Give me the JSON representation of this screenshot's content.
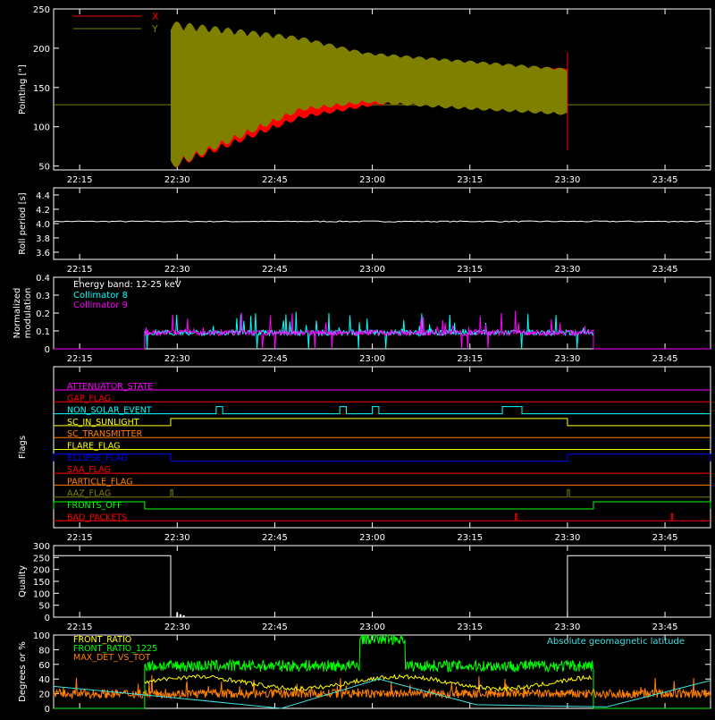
{
  "colors": {
    "background": "#000000",
    "frame": "#ffffff",
    "x_series": "#ff0000",
    "y_series": "#808000",
    "collimator8": "#00ffff",
    "collimator9": "#ff00ff",
    "front_ratio": "#ffff00",
    "front_ratio_1225": "#00ff00",
    "max_det": "#ff8000",
    "geomag": "#40e0e0"
  },
  "time_ticks": [
    "22:15",
    "22:30",
    "22:45",
    "23:00",
    "23:15",
    "23:30",
    "23:45"
  ],
  "chart_data": [
    {
      "type": "line",
      "panel": "pointing",
      "ylabel": "Pointing [\"]",
      "ylim": [
        45,
        250
      ],
      "yticks": [
        "50",
        "100",
        "150",
        "200",
        "250"
      ],
      "legend": [
        {
          "name": "X",
          "color": "#ff0000"
        },
        {
          "name": "Y",
          "color": "#808000"
        }
      ],
      "series": [
        {
          "name": "X",
          "envelope": {
            "t_minutes": [
              0,
              20,
              30,
              45,
              60,
              75,
              76
            ],
            "upper": [
              230,
              200,
              185,
              180,
              175,
              175,
              175
            ],
            "lower": [
              45,
              110,
              125,
              140,
              145,
              150,
              150
            ]
          }
        },
        {
          "name": "Y",
          "envelope": {
            "t_minutes": [
              0,
              20,
              30,
              45,
              60,
              75,
              76
            ],
            "upper": [
              235,
              215,
              195,
              185,
              175,
              165,
              165
            ],
            "lower": [
              45,
              120,
              130,
              122,
              115,
              105,
              105
            ]
          }
        }
      ],
      "baseline": 128,
      "active_range": [
        "22:29",
        "23:30"
      ]
    },
    {
      "type": "line",
      "panel": "roll_period",
      "ylabel": "Roll period [s]",
      "ylim": [
        3.5,
        4.5
      ],
      "yticks": [
        "3.6",
        "3.8",
        "4.0",
        "4.2",
        "4.4"
      ],
      "value": 4.03
    },
    {
      "type": "line",
      "panel": "modulation",
      "ylabel": "Normalized modulation",
      "ylim": [
        0,
        0.4
      ],
      "yticks": [
        "0",
        "0.1",
        "0.2",
        "0.3",
        "0.4"
      ],
      "annotation": "Energy band: 12-25 keV",
      "series": [
        {
          "name": "Collimator 8",
          "base": 0.09,
          "range": [
            "22:25",
            "23:34"
          ]
        },
        {
          "name": "Collimator 9",
          "base": 0.09,
          "range": [
            "22:25",
            "23:34"
          ]
        }
      ]
    },
    {
      "type": "line",
      "panel": "flags",
      "ylabel": "Flags",
      "flags": [
        {
          "name": "ATTENUATOR_STATE",
          "color": "#ff00ff",
          "on": []
        },
        {
          "name": "GAP_FLAG",
          "color": "#ff0000",
          "on": []
        },
        {
          "name": "NON_SOLAR_EVENT",
          "color": "#00ffff",
          "on": [
            [
              "22:36",
              "22:37"
            ],
            [
              "22:55",
              "22:56"
            ],
            [
              "23:00",
              "23:01"
            ],
            [
              "23:20",
              "23:23"
            ]
          ]
        },
        {
          "name": "SC_IN_SUNLIGHT",
          "color": "#ffff00",
          "on": [
            [
              "22:29",
              "23:30"
            ]
          ]
        },
        {
          "name": "SC_TRANSMITTER",
          "color": "#ff8000",
          "on": []
        },
        {
          "name": "FLARE_FLAG",
          "color": "#ffff00",
          "on": []
        },
        {
          "name": "ECLIPSE_FLAG",
          "color": "#0000ff",
          "on": [
            [
              "22:11",
              "22:29"
            ],
            [
              "23:30",
              "23:52"
            ]
          ]
        },
        {
          "name": "SAA_FLAG",
          "color": "#ff0000",
          "on": []
        },
        {
          "name": "PARTICLE_FLAG",
          "color": "#ff8000",
          "on": []
        },
        {
          "name": "AAZ_FLAG",
          "color": "#808000",
          "on": [
            [
              "22:29",
              "22:29.3"
            ],
            [
              "23:30",
              "23:30.3"
            ]
          ]
        },
        {
          "name": "FRONTS_OFF",
          "color": "#00ff00",
          "on": [
            [
              "22:11",
              "22:25"
            ],
            [
              "23:34",
              "23:52"
            ]
          ]
        },
        {
          "name": "BAD_PACKETS",
          "color": "#ff0000",
          "on": [
            [
              "23:22",
              "23:22.2"
            ],
            [
              "23:46",
              "23:46.2"
            ]
          ]
        }
      ]
    },
    {
      "type": "line",
      "panel": "quality",
      "ylabel": "Quality",
      "ylim": [
        0,
        300
      ],
      "yticks": [
        "0",
        "50",
        "100",
        "150",
        "200",
        "250",
        "300"
      ],
      "segments": [
        {
          "t": [
            "22:11",
            "22:29"
          ],
          "value": 258
        },
        {
          "t": [
            "22:29",
            "23:30"
          ],
          "value": 0
        },
        {
          "t": [
            "23:30",
            "23:52"
          ],
          "value": 258
        }
      ],
      "spikes": [
        {
          "t": "22:30",
          "value": 18
        },
        {
          "t": "22:30.5",
          "value": 12
        },
        {
          "t": "22:31",
          "value": 8
        }
      ]
    },
    {
      "type": "line",
      "panel": "ratios",
      "ylabel": "Degrees or %",
      "ylim": [
        0,
        100
      ],
      "yticks": [
        "0",
        "20",
        "40",
        "60",
        "80",
        "100"
      ],
      "legend_left": [
        "FRONT_RATIO",
        "FRONT_RATIO_1225",
        "MAX_DET_VS_TOT"
      ],
      "legend_right": "Absolute geomagnetic latitude",
      "series": [
        {
          "name": "FRONT_RATIO",
          "active_range": [
            "22:25",
            "23:34"
          ],
          "level": 35
        },
        {
          "name": "FRONT_RATIO_1225",
          "active_range": [
            "22:25",
            "23:34"
          ],
          "level": 58,
          "high_range": [
            "22:58",
            "23:05"
          ],
          "high_level": 95
        },
        {
          "name": "MAX_DET_VS_TOT",
          "range": [
            "22:11",
            "23:52"
          ],
          "level": 20
        },
        {
          "name": "Absolute geomagnetic latitude",
          "t_minutes": [
            0,
            18,
            35,
            50,
            65,
            85,
            101
          ],
          "values": [
            30,
            15,
            0,
            40,
            5,
            2,
            38
          ]
        }
      ]
    }
  ]
}
